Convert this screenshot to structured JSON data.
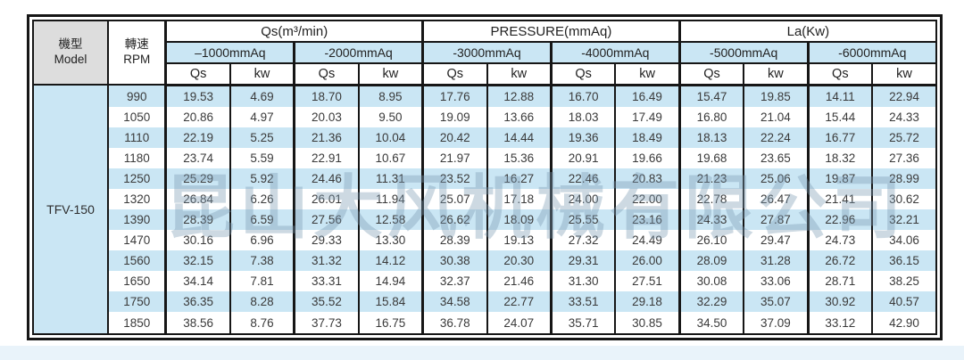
{
  "colors": {
    "stripe_blue": "#cae6f4",
    "header_gray": "#dddddd",
    "border_black": "#161616",
    "watermark_blue_gray": "#7d9cb4",
    "bottom_strip_blue": "#e9f3fa"
  },
  "table": {
    "model_header_zh": "機型",
    "model_header_en": "Model",
    "rpm_header_zh": "轉速",
    "rpm_header_en": "RPM",
    "group_headers": [
      "Qs(m³/min)",
      "PRESSURE(mmAq)",
      "La(Kw)"
    ],
    "pressure_headers": [
      "–1000mmAq",
      "-2000mmAq",
      "-3000mmAq",
      "-4000mmAq",
      "-5000mmAq",
      "-6000mmAq"
    ],
    "sub_headers": [
      "Qs",
      "kw"
    ],
    "model": "TFV-150",
    "rows": [
      {
        "rpm": "990",
        "values": [
          "19.53",
          "4.69",
          "18.70",
          "8.95",
          "17.76",
          "12.88",
          "16.70",
          "16.49",
          "15.47",
          "19.85",
          "14.11",
          "22.94"
        ]
      },
      {
        "rpm": "1050",
        "values": [
          "20.86",
          "4.97",
          "20.03",
          "9.50",
          "19.09",
          "13.66",
          "18.03",
          "17.49",
          "16.80",
          "21.04",
          "15.44",
          "24.33"
        ]
      },
      {
        "rpm": "1110",
        "values": [
          "22.19",
          "5.25",
          "21.36",
          "10.04",
          "20.42",
          "14.44",
          "19.36",
          "18.49",
          "18.13",
          "22.24",
          "16.77",
          "25.72"
        ]
      },
      {
        "rpm": "1180",
        "values": [
          "23.74",
          "5.59",
          "22.91",
          "10.67",
          "21.97",
          "15.36",
          "20.91",
          "19.66",
          "19.68",
          "23.65",
          "18.32",
          "27.36"
        ]
      },
      {
        "rpm": "1250",
        "values": [
          "25.29",
          "5.92",
          "24.46",
          "11.31",
          "23.52",
          "16.27",
          "22.46",
          "20.83",
          "21.23",
          "25.06",
          "19.87",
          "28.99"
        ]
      },
      {
        "rpm": "1320",
        "values": [
          "26.84",
          "6.26",
          "26.01",
          "11.94",
          "25.07",
          "17.18",
          "24.00",
          "22.00",
          "22.78",
          "26.47",
          "21.41",
          "30.62"
        ]
      },
      {
        "rpm": "1390",
        "values": [
          "28.39",
          "6.59",
          "27.56",
          "12.58",
          "26.62",
          "18.09",
          "25.55",
          "23.16",
          "24.33",
          "27.87",
          "22.96",
          "32.21"
        ]
      },
      {
        "rpm": "1470",
        "values": [
          "30.16",
          "6.96",
          "29.33",
          "13.30",
          "28.39",
          "19.13",
          "27.32",
          "24.49",
          "26.10",
          "29.47",
          "24.73",
          "34.06"
        ]
      },
      {
        "rpm": "1560",
        "values": [
          "32.15",
          "7.38",
          "31.32",
          "14.12",
          "30.38",
          "20.30",
          "29.31",
          "26.00",
          "28.09",
          "31.28",
          "26.72",
          "36.15"
        ]
      },
      {
        "rpm": "1650",
        "values": [
          "34.14",
          "7.81",
          "33.31",
          "14.94",
          "32.37",
          "21.46",
          "31.30",
          "27.51",
          "30.08",
          "33.06",
          "28.71",
          "38.25"
        ]
      },
      {
        "rpm": "1750",
        "values": [
          "36.35",
          "8.28",
          "35.52",
          "15.84",
          "34.58",
          "22.77",
          "33.51",
          "29.18",
          "32.29",
          "35.07",
          "30.92",
          "40.57"
        ]
      },
      {
        "rpm": "1850",
        "values": [
          "38.56",
          "8.76",
          "37.73",
          "16.75",
          "36.78",
          "24.07",
          "35.71",
          "30.85",
          "34.50",
          "37.09",
          "33.12",
          "42.90"
        ]
      }
    ]
  },
  "watermark": "昆山大风机械有限公司"
}
